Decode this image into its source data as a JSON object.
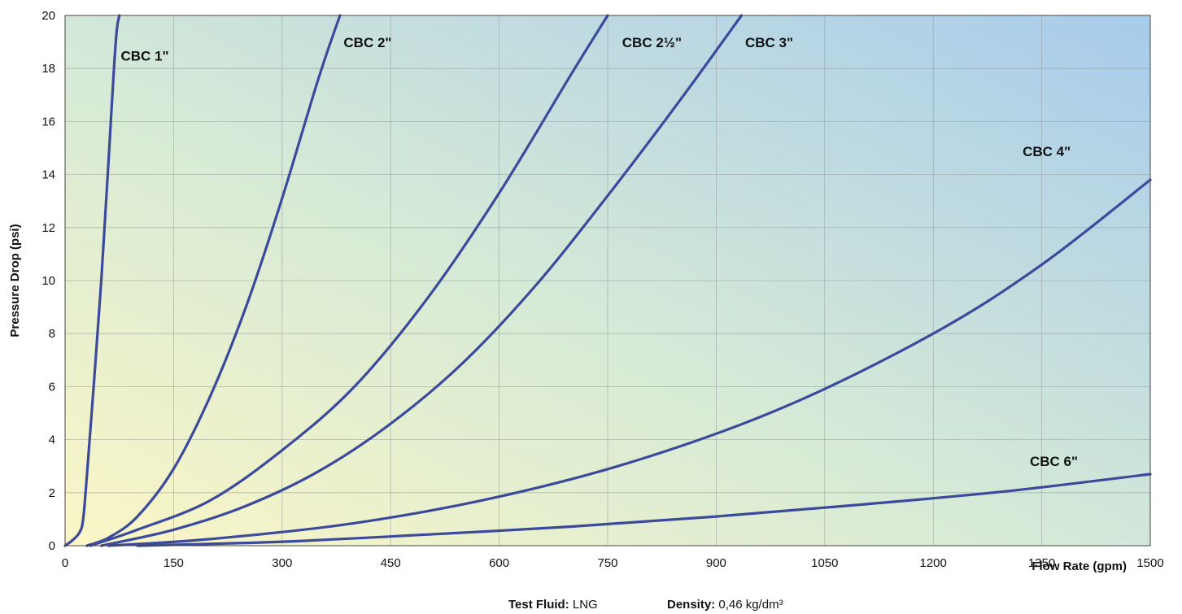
{
  "chart_data": {
    "type": "line",
    "xlabel": "Flow Rate (gpm)",
    "ylabel": "Pressure Drop (psi)",
    "xlim": [
      0,
      1500
    ],
    "ylim": [
      0,
      20
    ],
    "x_ticks": [
      "0",
      "150",
      "300",
      "450",
      "600",
      "750",
      "900",
      "1050",
      "1200",
      "1350",
      "1500"
    ],
    "y_ticks": [
      "0",
      "2",
      "4",
      "6",
      "8",
      "10",
      "12",
      "14",
      "16",
      "18",
      "20"
    ],
    "grid": true,
    "line_color": "#3b4a9b",
    "background_gradient": [
      "#fbf6c8",
      "#d9ecd6",
      "#a9cdeb"
    ],
    "series": [
      {
        "name": "CBC 1\"",
        "x": [
          0,
          10,
          20,
          25,
          30,
          40,
          50,
          60,
          70,
          75
        ],
        "y": [
          0,
          0.2,
          0.5,
          1.0,
          2.6,
          6.2,
          10.0,
          14.5,
          19.0,
          20
        ]
      },
      {
        "name": "CBC 2\"",
        "x": [
          30,
          60,
          100,
          150,
          200,
          250,
          300,
          350,
          380
        ],
        "y": [
          0,
          0.3,
          1.1,
          2.9,
          5.6,
          9.0,
          13.1,
          17.6,
          20
        ]
      },
      {
        "name": "CBC 2½\"",
        "x": [
          35,
          100,
          200,
          300,
          400,
          500,
          600,
          700,
          750
        ],
        "y": [
          0,
          0.6,
          1.7,
          3.6,
          6.0,
          9.3,
          13.3,
          17.8,
          20
        ]
      },
      {
        "name": "CBC 3\"",
        "x": [
          50,
          150,
          250,
          350,
          450,
          550,
          650,
          750,
          850,
          935
        ],
        "y": [
          0,
          0.6,
          1.5,
          2.8,
          4.6,
          6.9,
          9.8,
          13.2,
          16.8,
          20
        ]
      },
      {
        "name": "CBC 4\"",
        "x": [
          60,
          200,
          400,
          600,
          800,
          1000,
          1200,
          1350,
          1500
        ],
        "y": [
          0,
          0.25,
          0.85,
          1.85,
          3.3,
          5.3,
          8.0,
          10.6,
          13.8
        ]
      },
      {
        "name": "CBC 6\"",
        "x": [
          100,
          300,
          500,
          700,
          900,
          1100,
          1300,
          1500
        ],
        "y": [
          0,
          0.15,
          0.42,
          0.72,
          1.1,
          1.55,
          2.05,
          2.7
        ]
      }
    ],
    "labels": [
      {
        "text": "CBC 1\"",
        "x": 77,
        "y": 18.3
      },
      {
        "text": "CBC 2\"",
        "x": 385,
        "y": 18.8
      },
      {
        "text": "CBC 2½\"",
        "x": 770,
        "y": 18.8
      },
      {
        "text": "CBC 3\"",
        "x": 940,
        "y": 18.8
      },
      {
        "text": "CBC 4\"",
        "x": 1390,
        "y": 14.7
      },
      {
        "text": "CBC 6\"",
        "x": 1400,
        "y": 3.0
      }
    ]
  },
  "footnote": {
    "fluid_label": "Test Fluid:",
    "fluid_value": " LNG",
    "density_label": "Density:",
    "density_value": " 0,46 kg/dm³"
  }
}
